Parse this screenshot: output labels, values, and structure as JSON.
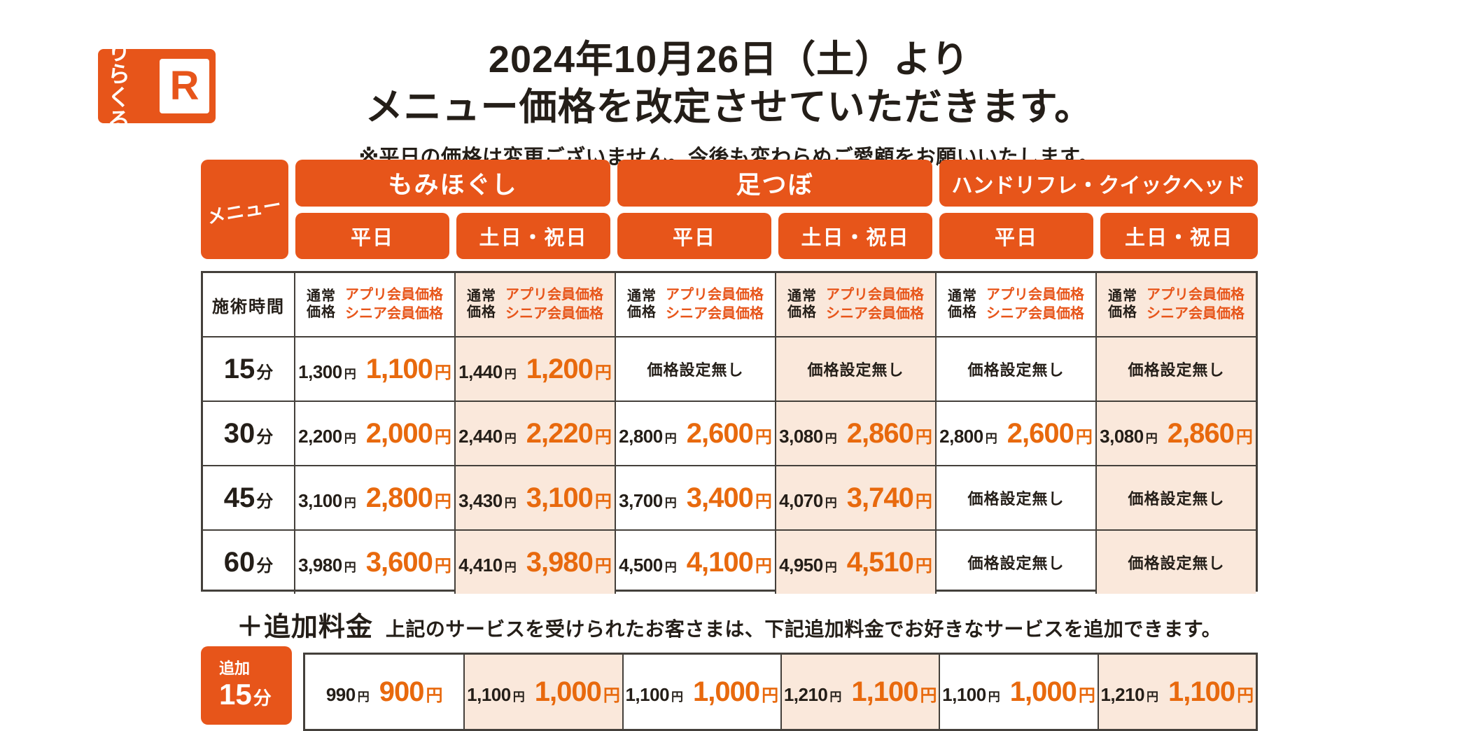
{
  "colors": {
    "brand_orange": "#E7551A",
    "price_orange": "#E8690D",
    "weekend_peach_bg": "#FAE8DB",
    "table_line": "#44403B",
    "ink": "#241E18"
  },
  "logo": {
    "name_line1": "りら",
    "name_line2": "くる",
    "mark": "R"
  },
  "notice": {
    "title_line1": "2024年10月26日（土）より",
    "title_line2": "メニュー価格を改定させていただきます。",
    "note": "※平日の価格は変更ございません。今後も変わらぬご愛顧をお願いいたします。"
  },
  "menu_header": {
    "corner_label": "メニュー",
    "services": [
      {
        "name": "もみほぐし",
        "days": [
          "平日",
          "土日・祝日"
        ]
      },
      {
        "name": "足つぼ",
        "days": [
          "平日",
          "土日・祝日"
        ]
      },
      {
        "name": "ハンドリフレ・クイックヘッド",
        "days": [
          "平日",
          "土日・祝日"
        ]
      }
    ]
  },
  "price_table": {
    "time_header": "施術時間",
    "regular_header": [
      "通常",
      "価格"
    ],
    "member_header": [
      "アプリ会員価格",
      "シニア会員価格"
    ],
    "yen": "円",
    "minutes_unit": "分",
    "no_price_label": "価格設定無し",
    "rows": [
      {
        "minutes": "15",
        "cells": [
          {
            "regular": "1,300",
            "member": "1,100"
          },
          {
            "regular": "1,440",
            "member": "1,200"
          },
          null,
          null,
          null,
          null
        ]
      },
      {
        "minutes": "30",
        "cells": [
          {
            "regular": "2,200",
            "member": "2,000"
          },
          {
            "regular": "2,440",
            "member": "2,220"
          },
          {
            "regular": "2,800",
            "member": "2,600"
          },
          {
            "regular": "3,080",
            "member": "2,860"
          },
          {
            "regular": "2,800",
            "member": "2,600"
          },
          {
            "regular": "3,080",
            "member": "2,860"
          }
        ]
      },
      {
        "minutes": "45",
        "cells": [
          {
            "regular": "3,100",
            "member": "2,800"
          },
          {
            "regular": "3,430",
            "member": "3,100"
          },
          {
            "regular": "3,700",
            "member": "3,400"
          },
          {
            "regular": "4,070",
            "member": "3,740"
          },
          null,
          null
        ]
      },
      {
        "minutes": "60",
        "cells": [
          {
            "regular": "3,980",
            "member": "3,600"
          },
          {
            "regular": "4,410",
            "member": "3,980"
          },
          {
            "regular": "4,500",
            "member": "4,100"
          },
          {
            "regular": "4,950",
            "member": "4,510"
          },
          null,
          null
        ]
      }
    ]
  },
  "addon": {
    "heading": "＋追加料金",
    "description": "上記のサービスを受けられたお客さまは、下記追加料金でお好きなサービスを追加できます。",
    "time_label_small": "追加",
    "time_minutes": "15",
    "time_unit": "分",
    "cells": [
      {
        "regular": "990",
        "member": "900"
      },
      {
        "regular": "1,100",
        "member": "1,000"
      },
      {
        "regular": "1,100",
        "member": "1,000"
      },
      {
        "regular": "1,210",
        "member": "1,100"
      },
      {
        "regular": "1,100",
        "member": "1,000"
      },
      {
        "regular": "1,210",
        "member": "1,100"
      }
    ]
  }
}
